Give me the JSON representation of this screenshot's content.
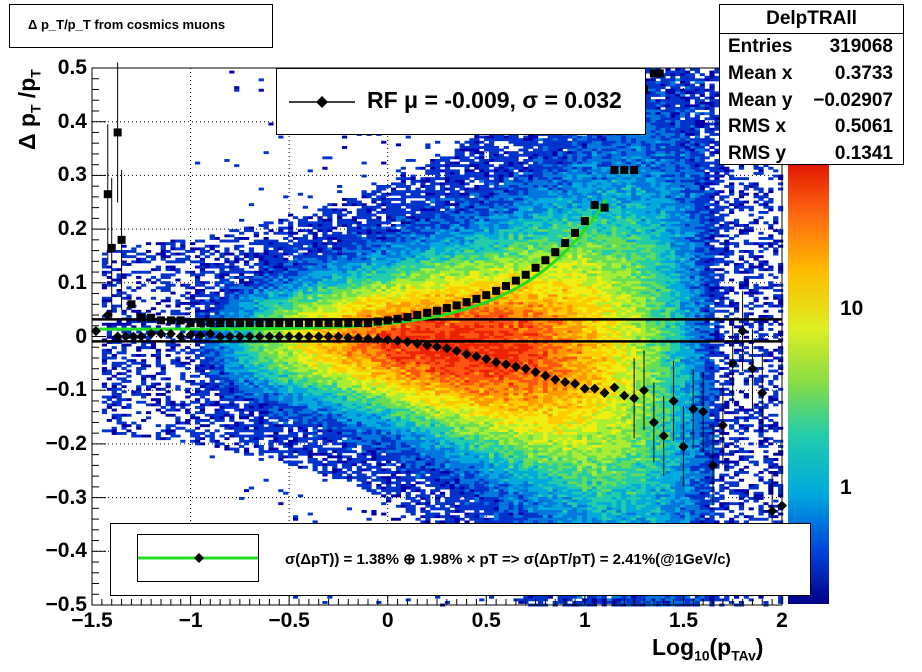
{
  "title": "Δ p_T/p_T from cosmics muons",
  "stats_box": {
    "name": "DelpTRAll",
    "rows": [
      {
        "label": "Entries",
        "value": "319068"
      },
      {
        "label": "Mean x",
        "value": "0.3733"
      },
      {
        "label": "Mean y",
        "value": "−0.02907"
      },
      {
        "label": "RMS x",
        "value": "0.5061"
      },
      {
        "label": "RMS y",
        "value": "0.1341"
      }
    ]
  },
  "legend_top": {
    "text": "RF μ = -0.009, σ =   0.032"
  },
  "legend_bottom": {
    "text": "σ(ΔpT)) =  1.38% ⊕  1.98% × pT => σ(ΔpT/pT) =  2.41%(@1GeV/c)"
  },
  "axes": {
    "xlabel": "Log10(pTAv)",
    "ylabel": "Δ pT /pT",
    "xlim": [
      -1.5,
      2.0
    ],
    "ylim": [
      -0.5,
      0.5
    ],
    "x_ticks": [
      "−1.5",
      "−1",
      "−0.5",
      "0",
      "0.5",
      "1",
      "1.5",
      "2"
    ],
    "y_ticks": [
      "0.5",
      "0.4",
      "0.3",
      "0.2",
      "0.1",
      "0",
      "−0.1",
      "−0.2",
      "−0.3",
      "−0.4",
      "−0.5"
    ],
    "z_ticks": [
      "10",
      "1"
    ],
    "grid": true
  },
  "colors": {
    "fit_curve": "#22dd22",
    "markers": "#000000"
  },
  "chart_data": {
    "type": "heatmap",
    "title": "Δ p_T/p_T from cosmics muons",
    "xlabel": "Log10(pTAv)",
    "ylabel": "Δ pT /pT",
    "xlim": [
      -1.5,
      2.0
    ],
    "ylim": [
      -0.5,
      0.5
    ],
    "z_scale": "log",
    "series": [
      {
        "name": "RF μ = -0.009, σ =   0.032",
        "kind": "profile_mean",
        "x": [
          -1.48,
          -1.42,
          -1.37,
          -1.33,
          -1.29,
          -1.25,
          -1.2,
          -1.15,
          -1.1,
          -1.05,
          -1.0,
          -0.95,
          -0.9,
          -0.85,
          -0.8,
          -0.75,
          -0.7,
          -0.65,
          -0.6,
          -0.55,
          -0.5,
          -0.45,
          -0.4,
          -0.35,
          -0.3,
          -0.25,
          -0.2,
          -0.15,
          -0.1,
          -0.05,
          0.0,
          0.05,
          0.1,
          0.15,
          0.2,
          0.25,
          0.3,
          0.35,
          0.4,
          0.45,
          0.5,
          0.55,
          0.6,
          0.65,
          0.7,
          0.75,
          0.8,
          0.85,
          0.9,
          0.95,
          1.0,
          1.05,
          1.1,
          1.15,
          1.2,
          1.25,
          1.3,
          1.35,
          1.4,
          1.45,
          1.5,
          1.55,
          1.6,
          1.65,
          1.7,
          1.75,
          1.8,
          1.85,
          1.9,
          1.95,
          2.0
        ],
        "y": [
          0.01,
          0.04,
          0.0,
          0.0,
          0.0,
          0.0,
          0.005,
          0.005,
          0.005,
          0.0,
          0.003,
          0.002,
          0.005,
          0.0,
          0.0,
          0.0,
          0.0,
          0.0,
          0.0,
          0.0,
          0.0,
          0.0,
          0.0,
          0.0,
          0.0,
          0.0,
          -0.002,
          -0.003,
          -0.004,
          -0.005,
          -0.006,
          -0.008,
          -0.01,
          -0.013,
          -0.016,
          -0.019,
          -0.022,
          -0.027,
          -0.033,
          -0.037,
          -0.042,
          -0.048,
          -0.052,
          -0.056,
          -0.06,
          -0.066,
          -0.073,
          -0.08,
          -0.085,
          -0.088,
          -0.097,
          -0.097,
          -0.105,
          -0.095,
          -0.11,
          -0.115,
          -0.1,
          -0.16,
          -0.185,
          -0.12,
          -0.205,
          -0.135,
          -0.14,
          -0.24,
          -0.165,
          -0.05,
          0.01,
          -0.06,
          -0.105,
          -0.325,
          -0.315
        ]
      },
      {
        "name": "σ(ΔpT)) =  1.38% ⊕  1.98% × pT => σ(ΔpT/pT) =  2.41%(@1GeV/c)",
        "kind": "profile_sigma",
        "x": [
          -1.42,
          -1.4,
          -1.37,
          -1.35,
          -1.3,
          -1.25,
          -1.2,
          -1.15,
          -1.1,
          -1.05,
          -1.0,
          -0.95,
          -0.9,
          -0.85,
          -0.8,
          -0.75,
          -0.7,
          -0.65,
          -0.6,
          -0.55,
          -0.5,
          -0.45,
          -0.4,
          -0.35,
          -0.3,
          -0.25,
          -0.2,
          -0.15,
          -0.1,
          -0.05,
          0.0,
          0.05,
          0.1,
          0.15,
          0.2,
          0.25,
          0.3,
          0.35,
          0.4,
          0.45,
          0.5,
          0.55,
          0.6,
          0.65,
          0.7,
          0.75,
          0.8,
          0.85,
          0.9,
          0.95,
          1.0,
          1.05,
          1.1,
          1.15,
          1.2,
          1.25,
          1.3,
          1.35,
          1.38
        ],
        "y": [
          0.265,
          0.165,
          0.38,
          0.18,
          0.06,
          0.035,
          0.035,
          0.03,
          0.03,
          0.03,
          0.025,
          0.025,
          0.025,
          0.025,
          0.025,
          0.025,
          0.025,
          0.025,
          0.025,
          0.025,
          0.025,
          0.025,
          0.025,
          0.025,
          0.025,
          0.025,
          0.025,
          0.025,
          0.025,
          0.028,
          0.03,
          0.033,
          0.036,
          0.04,
          0.044,
          0.048,
          0.053,
          0.058,
          0.064,
          0.07,
          0.077,
          0.085,
          0.094,
          0.104,
          0.115,
          0.128,
          0.142,
          0.157,
          0.174,
          0.193,
          0.215,
          0.245,
          0.24,
          0.31,
          0.31,
          0.31,
          0.46,
          0.49,
          0.49
        ]
      },
      {
        "name": "fit",
        "kind": "fit_curve",
        "formula": "sqrt(0.0138^2 + (0.0198*10^x)^2)",
        "x_range": [
          -1.5,
          1.12
        ]
      }
    ],
    "reference_lines_y": [
      0.032,
      -0.009
    ]
  }
}
